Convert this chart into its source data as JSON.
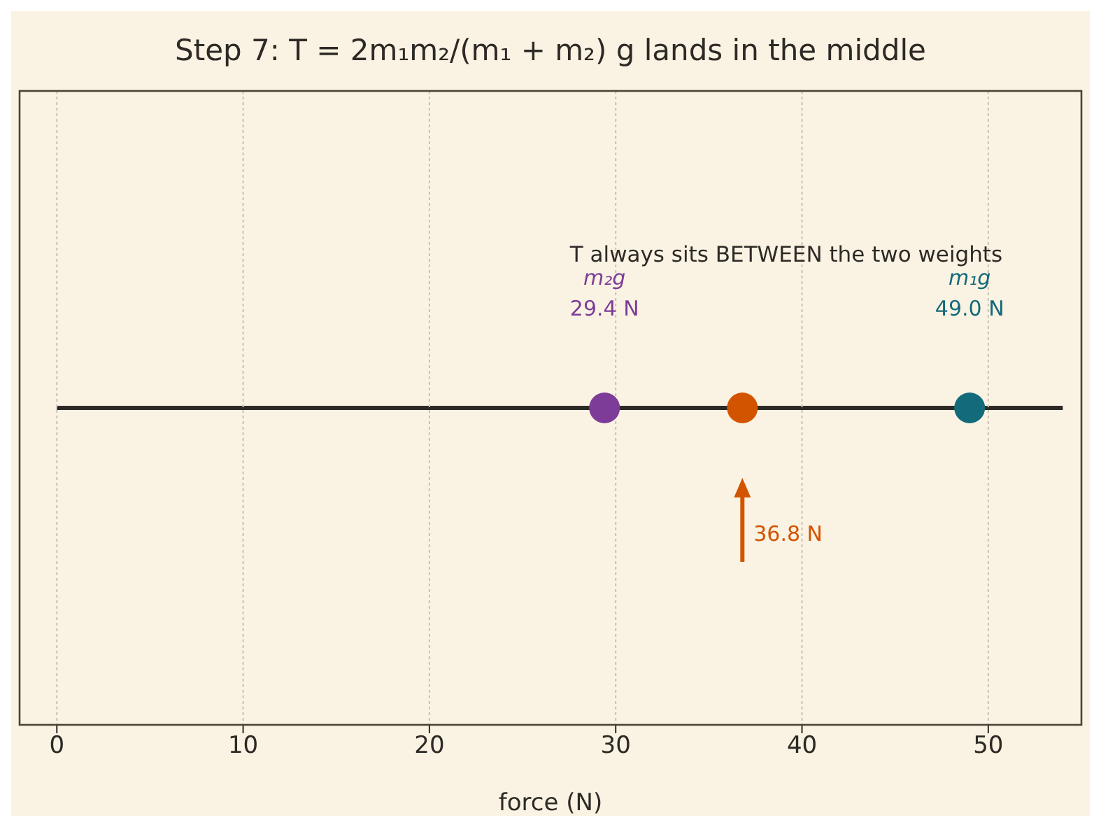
{
  "chart_data": {
    "type": "scatter",
    "orientation": "horizontal",
    "title": "Step 7: T = 2m₁m₂/(m₁ + m₂) g lands in the middle",
    "xlabel": "force (N)",
    "categories": [
      null
    ],
    "xlim": [
      -2,
      55
    ],
    "xticks": [
      0,
      10,
      20,
      30,
      40,
      50
    ],
    "tick_labels": "x",
    "grid": "x",
    "marker": "circle",
    "annotations": [
      "T always sits BETWEEN the two weights",
      "29.4 N",
      "36.8 N",
      "49.0 N"
    ],
    "series": [
      {
        "type": "bar",
        "color": "#2d2a26",
        "values": [
          54
        ]
      },
      {
        "name": "m₂g",
        "color": "#7d3c98",
        "values": [
          29.4
        ]
      },
      {
        "color": "#d35400",
        "values": [
          36.8
        ]
      },
      {
        "name": "m₁g",
        "color": "#136a7a",
        "values": [
          49.0
        ]
      }
    ]
  }
}
